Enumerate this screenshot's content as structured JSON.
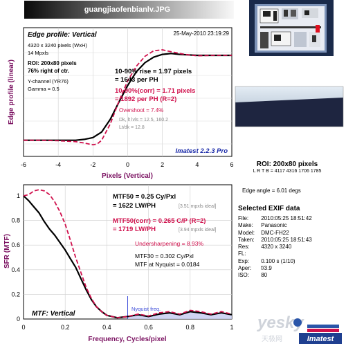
{
  "filename": "guangjiaofenbianlv.JPG",
  "edge_panel": {
    "title": "Edge profile: Vertical",
    "date": "25-May-2010 23:19:29",
    "info": [
      "4320 x 3240 pixels (WxH)",
      "14 Mpxls"
    ],
    "roi": [
      "ROI: 200x80 pixels",
      "76% right of ctr."
    ],
    "channel": [
      "Y-channel (YR76)",
      "Gamma = 0.5"
    ],
    "rise": [
      "10-90% rise = 1.97 pixels",
      "= 1643 per PH"
    ],
    "rise_corr": [
      "10-90%(corr) = 1.71 pixels",
      "= 1892 per PH  (R=2)"
    ],
    "overshoot": "Overshoot = 7.4%",
    "dk": "Dk, lt lvls = 12.5, 160.2",
    "ltdk": "Lt/dk = 12.8",
    "version": "Imatest 2.2.3 Pro",
    "xlabel": "Pixels (Vertical)",
    "ylabel": "Edge profile (linear)"
  },
  "mtf_panel": {
    "mtf50": [
      "MTF50 = 0.25 Cy/Pxl",
      "= 1622 LW/PH"
    ],
    "mtf50_ideal": "[3.51 mpxls ideal]",
    "mtf50_corr": [
      "MTF50(corr) = 0.265 C/P   (R=2)",
      "= 1719 LW/PH"
    ],
    "mtf50_corr_ideal": "[3.94 mpxls ideal]",
    "undersharpening": "Undersharpening = 8.93%",
    "mtf30": "MTF30 = 0.302 Cy/Pxl",
    "nyquist_mtf": "MTF at Nyquist = 0.0184",
    "nyquist_label": "Nyquist freq.",
    "title": "MTF: Vertical",
    "xlabel": "Frequency, Cycles/pixel",
    "ylabel": "SFR (MTF)"
  },
  "roi": {
    "title": "ROI: 200x80 pixels",
    "coords": "L R T B = 4117 4316 1706 1785"
  },
  "edge_angle": "Edge angle = 6.01 degs",
  "exif": {
    "title": "Selected EXIF data",
    "rows": [
      {
        "label": "File:",
        "value": "2010:05:25 18:51:42"
      },
      {
        "label": "Make:",
        "value": "Panasonic"
      },
      {
        "label": "Model:",
        "value": "DMC-FH22"
      },
      {
        "label": "Taken:",
        "value": "2010:05:25 18:51:43"
      },
      {
        "label": "Res:",
        "value": "4320 x 3240"
      },
      {
        "label": "FL:",
        "value": ""
      },
      {
        "label": "Exp:",
        "value": "0.100 s  (1/10)"
      },
      {
        "label": "Aper:",
        "value": "f/3.9"
      },
      {
        "label": "ISO:",
        "value": "80"
      }
    ]
  },
  "watermark": {
    "left": "yesky",
    "sub": "天极网",
    "badge": "Imatest"
  },
  "colors": {
    "measured": "#000000",
    "corrected": "#d0104c",
    "nyquist": "#3a4ad8",
    "fill": "#c8ccf0",
    "ylabel": "#7a1060"
  },
  "chart_data": [
    {
      "type": "line",
      "title": "Edge profile: Vertical",
      "xlabel": "Pixels (Vertical)",
      "ylabel": "Edge profile (linear)",
      "xlim": [
        -6,
        6
      ],
      "xticks": [
        -6,
        -4,
        -2,
        0,
        2,
        4,
        6
      ],
      "grid": true,
      "series": [
        {
          "x": [
            -6,
            -5,
            -4,
            -3,
            -2.5,
            -2,
            -1.5,
            -1,
            -0.5,
            0,
            0.5,
            1,
            1.5,
            2,
            2.5,
            3,
            3.5,
            4,
            5,
            6
          ],
          "y": [
            0.04,
            0.04,
            0.04,
            0.04,
            0.05,
            0.07,
            0.13,
            0.27,
            0.46,
            0.64,
            0.79,
            0.89,
            0.95,
            0.98,
            0.99,
            0.98,
            0.975,
            0.97,
            0.97,
            0.97
          ]
        },
        {
          "x": [
            -6,
            -5,
            -4,
            -3,
            -2.5,
            -2,
            -1.75,
            -1.5,
            -1,
            -0.5,
            0,
            0.5,
            1,
            1.5,
            2,
            2.5,
            3,
            3.5,
            4,
            5,
            6
          ],
          "y": [
            0.04,
            0.04,
            0.035,
            0.025,
            0.01,
            -0.01,
            0.0,
            0.04,
            0.22,
            0.47,
            0.69,
            0.85,
            0.96,
            1.02,
            1.03,
            1.01,
            0.99,
            0.975,
            0.965,
            0.97,
            0.97
          ]
        }
      ]
    },
    {
      "type": "area",
      "title": "MTF: Vertical",
      "xlabel": "Frequency, Cycles/pixel",
      "ylabel": "SFR (MTF)",
      "xlim": [
        0,
        1
      ],
      "ylim": [
        0,
        1
      ],
      "xticks": [
        0,
        0.2,
        0.4,
        0.6,
        0.8,
        1
      ],
      "yticks": [
        0,
        0.2,
        0.4,
        0.6,
        0.8,
        1
      ],
      "grid": true,
      "nyquist": 0.5,
      "series": [
        {
          "x": [
            0,
            0.025,
            0.05,
            0.075,
            0.1,
            0.125,
            0.15,
            0.175,
            0.2,
            0.225,
            0.25,
            0.275,
            0.3,
            0.325,
            0.35,
            0.375,
            0.4,
            0.45,
            0.5,
            0.55,
            0.6,
            0.65,
            0.7,
            0.75,
            0.8,
            0.85,
            0.9,
            0.95,
            1.0
          ],
          "y": [
            1.0,
            0.96,
            0.91,
            0.86,
            0.79,
            0.73,
            0.68,
            0.62,
            0.56,
            0.49,
            0.42,
            0.33,
            0.24,
            0.16,
            0.1,
            0.06,
            0.03,
            0.01,
            0.02,
            0.035,
            0.02,
            0.04,
            0.05,
            0.035,
            0.06,
            0.05,
            0.035,
            0.05,
            0.035
          ]
        },
        {
          "x": [
            0,
            0.025,
            0.05,
            0.075,
            0.1,
            0.125,
            0.15,
            0.175,
            0.2,
            0.225,
            0.25,
            0.275,
            0.3,
            0.325,
            0.35,
            0.375,
            0.4,
            0.45,
            0.5,
            0.55,
            0.6,
            0.65,
            0.7,
            0.75,
            0.8,
            0.85,
            0.9,
            0.95,
            1.0
          ],
          "y": [
            1.0,
            1.01,
            1.04,
            1.05,
            1.04,
            1.01,
            0.95,
            0.87,
            0.77,
            0.64,
            0.5,
            0.38,
            0.26,
            0.17,
            0.1,
            0.06,
            0.03,
            0.01,
            0.02,
            0.04,
            0.025,
            0.05,
            0.06,
            0.04,
            0.07,
            0.06,
            0.04,
            0.06,
            0.04
          ]
        }
      ]
    }
  ]
}
